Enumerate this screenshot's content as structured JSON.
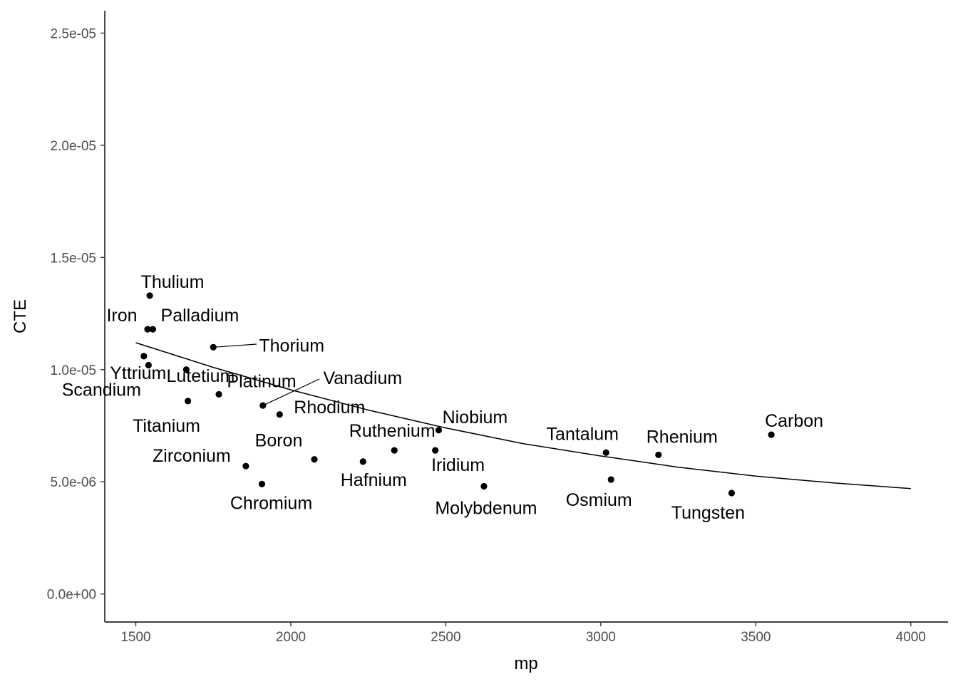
{
  "chart_data": {
    "type": "scatter",
    "title": "",
    "xlabel": "mp",
    "ylabel": "CTE",
    "xlim": [
      1400,
      4120
    ],
    "ylim": [
      -1.25e-06,
      2.6e-05
    ],
    "x_ticks": [
      1500,
      2000,
      2500,
      3000,
      3500,
      4000
    ],
    "x_tick_labels": [
      "1500",
      "2000",
      "2500",
      "3000",
      "3500",
      "4000"
    ],
    "y_ticks": [
      0,
      5e-06,
      1e-05,
      1.5e-05,
      2e-05,
      2.5e-05
    ],
    "y_tick_labels": [
      "0.0e+00",
      "5.0e-06",
      "1.0e-05",
      "1.5e-05",
      "2.0e-05",
      "2.5e-05"
    ],
    "grid": false,
    "points": [
      {
        "label": "Thulium",
        "x": 1545,
        "y": 1.33e-05
      },
      {
        "label": "Iron",
        "x": 1538,
        "y": 1.18e-05
      },
      {
        "label": "Palladium",
        "x": 1555,
        "y": 1.18e-05
      },
      {
        "label": "Thorium",
        "x": 1750,
        "y": 1.1e-05
      },
      {
        "label": "Yttrium",
        "x": 1526,
        "y": 1.06e-05
      },
      {
        "label": "Lutetium",
        "x": 1663,
        "y": 1e-05
      },
      {
        "label": "Scandium",
        "x": 1541,
        "y": 1.02e-05
      },
      {
        "label": "Platinum",
        "x": 1768,
        "y": 8.9e-06
      },
      {
        "label": "Vanadium",
        "x": 1910,
        "y": 8.4e-06
      },
      {
        "label": "Titanium",
        "x": 1668,
        "y": 8.6e-06
      },
      {
        "label": "Rhodium",
        "x": 1964,
        "y": 8e-06
      },
      {
        "label": "Niobium",
        "x": 2477,
        "y": 7.3e-06
      },
      {
        "label": "Carbon",
        "x": 3550,
        "y": 7.1e-06
      },
      {
        "label": "Ruthenium",
        "x": 2334,
        "y": 6.4e-06
      },
      {
        "label": "Iridium",
        "x": 2466,
        "y": 6.4e-06
      },
      {
        "label": "Tantalum",
        "x": 3017,
        "y": 6.3e-06
      },
      {
        "label": "Rhenium",
        "x": 3186,
        "y": 6.2e-06
      },
      {
        "label": "Boron",
        "x": 2076,
        "y": 6e-06
      },
      {
        "label": "Hafnium",
        "x": 2233,
        "y": 5.9e-06
      },
      {
        "label": "Zirconium",
        "x": 1855,
        "y": 5.7e-06
      },
      {
        "label": "Osmium",
        "x": 3033,
        "y": 5.1e-06
      },
      {
        "label": "Chromium",
        "x": 1907,
        "y": 4.9e-06
      },
      {
        "label": "Molybdenum",
        "x": 2623,
        "y": 4.8e-06
      },
      {
        "label": "Tungsten",
        "x": 3422,
        "y": 4.5e-06
      }
    ],
    "fit_line": {
      "x": [
        1500,
        1750,
        2000,
        2250,
        2500,
        2750,
        3000,
        3250,
        3500,
        3750,
        4000
      ],
      "y": [
        1.12e-05,
        1.01e-05,
        9.1e-06,
        8.2e-06,
        7.4e-06,
        6.7e-06,
        6.15e-06,
        5.65e-06,
        5.25e-06,
        4.95e-06,
        4.7e-06
      ]
    }
  }
}
